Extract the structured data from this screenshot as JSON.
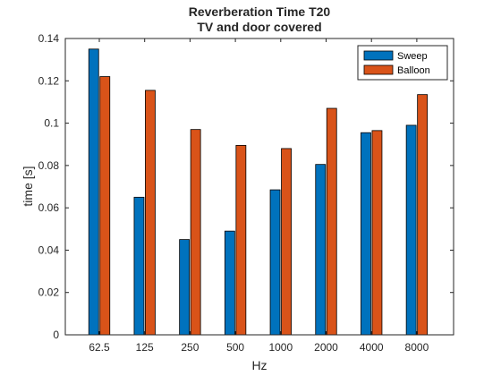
{
  "chart_data": {
    "type": "bar",
    "title": "Reverberation Time T20",
    "subtitle": "TV and door covered",
    "xlabel": "Hz",
    "ylabel": "time [s]",
    "categories": [
      "62.5",
      "125",
      "250",
      "500",
      "1000",
      "2000",
      "4000",
      "8000"
    ],
    "ylim": [
      0,
      0.14
    ],
    "yticks": [
      0,
      0.02,
      0.04,
      0.06,
      0.08,
      0.1,
      0.12,
      0.14
    ],
    "ytick_labels": [
      "0",
      "0.02",
      "0.04",
      "0.06",
      "0.08",
      "0.1",
      "0.12",
      "0.14"
    ],
    "grid": false,
    "legend_position": "top-right",
    "series": [
      {
        "name": "Sweep",
        "color": "#0072BD",
        "values": [
          0.135,
          0.065,
          0.045,
          0.049,
          0.0685,
          0.0805,
          0.0955,
          0.099
        ]
      },
      {
        "name": "Balloon",
        "color": "#D95319",
        "values": [
          0.122,
          0.1155,
          0.097,
          0.0895,
          0.088,
          0.107,
          0.0965,
          0.1135
        ]
      }
    ]
  }
}
